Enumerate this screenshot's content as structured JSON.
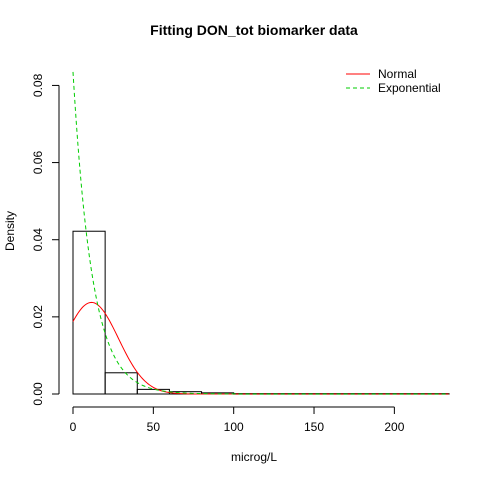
{
  "chart_data": {
    "type": "histogram",
    "title": "Fitting DON_tot biomarker data",
    "xlabel": "microg/L",
    "ylabel": "Density",
    "xlim": [
      0,
      234
    ],
    "ylim": [
      0,
      0.084
    ],
    "x_ticks": [
      0,
      50,
      100,
      150,
      200
    ],
    "y_ticks": [
      0.0,
      0.02,
      0.04,
      0.06,
      0.08
    ],
    "x_tick_labels": [
      "0",
      "50",
      "100",
      "150",
      "200"
    ],
    "y_tick_labels": [
      "0.00",
      "0.02",
      "0.04",
      "0.06",
      "0.08"
    ],
    "bins": [
      {
        "x0": 0,
        "x1": 20,
        "density": 0.0422
      },
      {
        "x0": 20,
        "x1": 40,
        "density": 0.0055
      },
      {
        "x0": 40,
        "x1": 60,
        "density": 0.0012
      },
      {
        "x0": 60,
        "x1": 80,
        "density": 0.0006
      },
      {
        "x0": 80,
        "x1": 100,
        "density": 0.0003
      },
      {
        "x0": 100,
        "x1": 234,
        "density": 0.0001
      }
    ],
    "series": [
      {
        "name": "Normal",
        "kind": "normal",
        "mean": 11.5,
        "sd": 16.8,
        "color": "#ff0000",
        "dash": "solid"
      },
      {
        "name": "Exponential",
        "kind": "exponential",
        "rate": 0.0835,
        "color": "#00cc00",
        "dash": "dashed"
      }
    ],
    "legend_position": "top-right"
  }
}
